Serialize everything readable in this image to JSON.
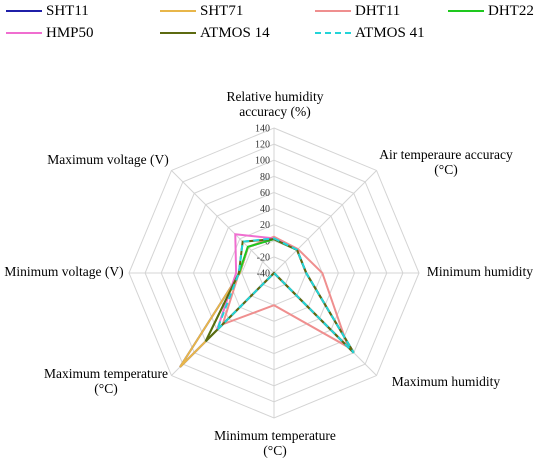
{
  "chart_data": {
    "type": "radar",
    "axes": [
      {
        "label": "Relative humidity\naccuracy (%)"
      },
      {
        "label": "Air temperaure accuracy\n(°C)"
      },
      {
        "label": "Minimum humidity"
      },
      {
        "label": "Maximum humidity"
      },
      {
        "label": "Minimum temperature\n(°C)"
      },
      {
        "label": "Maximum temperature\n(°C)"
      },
      {
        "label": "Minimum voltage (V)"
      },
      {
        "label": "Maximum voltage (V)"
      }
    ],
    "ticks": [
      -40,
      -20,
      0,
      20,
      40,
      60,
      80,
      100,
      120,
      140
    ],
    "tick_labels": [
      "-40",
      "-20",
      "0",
      "20",
      "40",
      "60",
      "80",
      "100",
      "120",
      "140"
    ],
    "range": [
      -40,
      140
    ],
    "grid": true,
    "legend_position": "top",
    "series": [
      {
        "name": "SHT11",
        "color": "#1f1fa8",
        "dash": "",
        "values": [
          3,
          0.4,
          0,
          100,
          -40,
          125,
          2.4,
          5.5
        ]
      },
      {
        "name": "SHT71",
        "color": "#e8b64a",
        "dash": "",
        "values": [
          3,
          0.4,
          0,
          100,
          -40,
          125,
          2.4,
          5.5
        ]
      },
      {
        "name": "DHT11",
        "color": "#ef8f8f",
        "dash": "",
        "values": [
          5,
          2,
          20,
          90,
          0,
          50,
          3.5,
          5.5
        ]
      },
      {
        "name": "DHT22",
        "color": "#1ec81e",
        "dash": "",
        "values": [
          2,
          0.5,
          0,
          100,
          -40,
          80,
          3.3,
          6
        ]
      },
      {
        "name": "HMP50",
        "color": "#f06ed0",
        "dash": "",
        "values": [
          3,
          0.6,
          0,
          100,
          -40,
          60,
          7,
          28
        ]
      },
      {
        "name": "ATMOS 14",
        "color": "#5c6a10",
        "dash": "",
        "values": [
          2,
          0.5,
          0,
          100,
          -40,
          80,
          3.6,
          15
        ]
      },
      {
        "name": "ATMOS 41",
        "color": "#22d4d8",
        "dash": "6,4",
        "values": [
          3,
          0.6,
          0,
          100,
          -40,
          60,
          3.6,
          15
        ]
      }
    ]
  }
}
